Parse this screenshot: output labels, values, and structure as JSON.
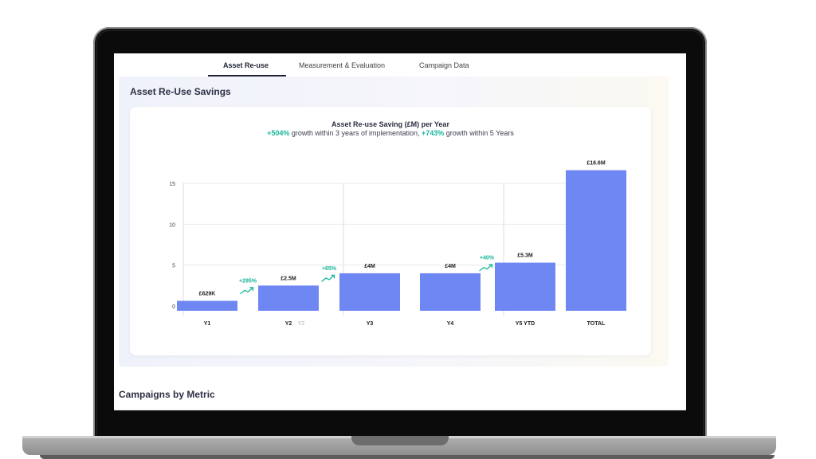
{
  "tabs": [
    {
      "label": "Asset Re-use",
      "active": true
    },
    {
      "label": "Measurement & Evaluation",
      "active": false
    },
    {
      "label": "Campaign Data",
      "active": false
    }
  ],
  "section_title": "Asset Re-Use Savings",
  "chart_heading": {
    "title": "Asset Re-use Saving (£M) per Year",
    "growth_3y": "+504%",
    "text_1": " growth within 3 years of implementation, ",
    "growth_5y": "+743%",
    "text_2": " growth within 5 Years"
  },
  "chart_data": {
    "type": "bar",
    "title": "Asset Re-use Saving (£M) per Year",
    "categories": [
      "Y1",
      "Y2",
      "Y3",
      "Y4",
      "Y5 YTD",
      "TOTAL"
    ],
    "values": [
      0.629,
      2.5,
      4,
      4,
      5.3,
      16.6
    ],
    "data_labels": [
      "£629K",
      "£2.5M",
      "£4M",
      "£4M",
      "£5.3M",
      "£16.6M"
    ],
    "secondary_label": "Y2",
    "growth_labels": [
      "+295%",
      "+65%",
      "+40%"
    ],
    "yticks": [
      0,
      5,
      10,
      15
    ],
    "ylim": [
      0,
      15
    ],
    "xlabel": "",
    "ylabel": "",
    "bar_color": "#6f87f2",
    "growth_color": "#18b59a"
  },
  "section2_title": "Campaigns by Metric"
}
